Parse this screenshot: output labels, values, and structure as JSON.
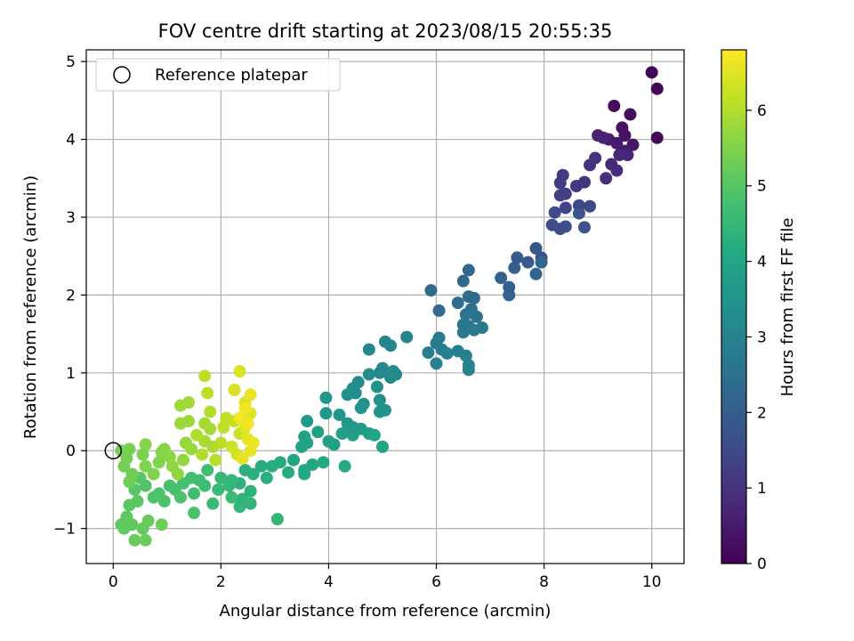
{
  "chart_data": {
    "type": "scatter",
    "title": "FOV centre drift starting at 2023/08/15 20:55:35",
    "xlabel": "Angular distance from reference (arcmin)",
    "ylabel": "Rotation from reference (arcmin)",
    "xlim": [
      -0.5,
      10.6
    ],
    "ylim": [
      -1.45,
      5.15
    ],
    "xticks": [
      0,
      2,
      4,
      6,
      8,
      10
    ],
    "xtick_labels": [
      "0",
      "2",
      "4",
      "6",
      "8",
      "10"
    ],
    "yticks": [
      -1,
      0,
      1,
      2,
      3,
      4,
      5
    ],
    "ytick_labels": [
      "−1",
      "0",
      "1",
      "2",
      "3",
      "4",
      "5"
    ],
    "grid": true,
    "legend": {
      "position": "upper-left",
      "entries": [
        {
          "label": "Reference platepar",
          "marker": "hollow-circle"
        }
      ]
    },
    "colorbar": {
      "label": "Hours from first FF file",
      "range": [
        0,
        6.8
      ],
      "ticks": [
        0,
        1,
        2,
        3,
        4,
        5,
        6
      ],
      "tick_labels": [
        "0",
        "1",
        "2",
        "3",
        "4",
        "5",
        "6"
      ],
      "colormap": "viridis"
    },
    "reference_point": {
      "x": 0,
      "y": 0
    },
    "series": [
      {
        "name": "Reference platepar",
        "points": [
          [
            10.0,
            4.86,
            0.05
          ],
          [
            10.1,
            4.65,
            0.1
          ],
          [
            10.1,
            4.02,
            0.15
          ],
          [
            9.3,
            4.43,
            0.2
          ],
          [
            9.6,
            4.32,
            0.25
          ],
          [
            9.45,
            4.15,
            0.3
          ],
          [
            9.5,
            4.05,
            0.35
          ],
          [
            9.65,
            3.93,
            0.4
          ],
          [
            9.5,
            3.85,
            0.45
          ],
          [
            9.35,
            3.95,
            0.5
          ],
          [
            9.2,
            4.0,
            0.55
          ],
          [
            9.0,
            4.05,
            0.6
          ],
          [
            9.1,
            4.02,
            0.65
          ],
          [
            9.55,
            3.8,
            0.7
          ],
          [
            9.4,
            3.8,
            0.75
          ],
          [
            9.25,
            3.68,
            0.8
          ],
          [
            9.35,
            3.6,
            0.85
          ],
          [
            9.15,
            3.5,
            0.9
          ],
          [
            8.95,
            3.76,
            0.95
          ],
          [
            8.85,
            3.67,
            1.0
          ],
          [
            8.75,
            3.45,
            1.05
          ],
          [
            8.6,
            3.4,
            1.1
          ],
          [
            8.35,
            3.54,
            1.15
          ],
          [
            8.3,
            3.44,
            1.2
          ],
          [
            8.3,
            3.28,
            1.25
          ],
          [
            8.4,
            3.3,
            1.3
          ],
          [
            8.4,
            3.12,
            1.35
          ],
          [
            8.65,
            3.15,
            1.4
          ],
          [
            8.85,
            3.14,
            1.45
          ],
          [
            8.2,
            3.06,
            1.5
          ],
          [
            8.15,
            2.9,
            1.55
          ],
          [
            8.3,
            2.85,
            1.6
          ],
          [
            8.4,
            2.88,
            1.65
          ],
          [
            8.75,
            2.87,
            1.7
          ],
          [
            8.65,
            3.05,
            1.75
          ],
          [
            7.95,
            2.48,
            1.8
          ],
          [
            7.85,
            2.6,
            1.85
          ],
          [
            7.7,
            2.42,
            1.9
          ],
          [
            7.5,
            2.48,
            1.95
          ],
          [
            7.45,
            2.35,
            2.0
          ],
          [
            7.35,
            2.1,
            2.05
          ],
          [
            7.35,
            2.0,
            2.1
          ],
          [
            7.2,
            2.22,
            2.15
          ],
          [
            7.85,
            2.27,
            2.2
          ],
          [
            7.95,
            2.42,
            2.25
          ],
          [
            6.6,
            2.32,
            2.25
          ],
          [
            6.5,
            2.18,
            2.3
          ],
          [
            5.9,
            2.06,
            2.35
          ],
          [
            6.05,
            1.8,
            2.35
          ],
          [
            6.6,
            1.98,
            2.4
          ],
          [
            6.7,
            1.96,
            2.42
          ],
          [
            6.4,
            1.9,
            2.45
          ],
          [
            6.65,
            1.82,
            2.5
          ],
          [
            6.55,
            1.75,
            2.55
          ],
          [
            6.75,
            1.72,
            2.6
          ],
          [
            6.5,
            1.62,
            2.65
          ],
          [
            6.6,
            1.6,
            2.7
          ],
          [
            6.85,
            1.58,
            2.72
          ],
          [
            6.7,
            1.55,
            2.75
          ],
          [
            6.5,
            1.52,
            2.78
          ],
          [
            6.05,
            1.45,
            2.8
          ],
          [
            6.0,
            1.38,
            2.82
          ],
          [
            6.1,
            1.3,
            2.85
          ],
          [
            5.85,
            1.26,
            2.88
          ],
          [
            6.2,
            1.25,
            2.9
          ],
          [
            6.4,
            1.28,
            2.92
          ],
          [
            6.55,
            1.22,
            2.95
          ],
          [
            6.6,
            1.1,
            2.98
          ],
          [
            6.6,
            1.04,
            3.0
          ],
          [
            6.0,
            1.12,
            3.02
          ],
          [
            5.45,
            1.46,
            3.05
          ],
          [
            5.05,
            1.4,
            3.08
          ],
          [
            5.15,
            1.35,
            3.1
          ],
          [
            4.75,
            1.3,
            3.12
          ],
          [
            5.0,
            1.06,
            3.15
          ],
          [
            4.95,
            1.0,
            3.18
          ],
          [
            5.2,
            1.02,
            3.2
          ],
          [
            5.25,
            0.98,
            3.22
          ],
          [
            5.15,
            0.94,
            3.25
          ],
          [
            4.75,
            0.98,
            3.28
          ],
          [
            4.55,
            0.88,
            3.3
          ],
          [
            4.45,
            0.8,
            3.32
          ],
          [
            4.5,
            0.74,
            3.35
          ],
          [
            4.35,
            0.72,
            3.38
          ],
          [
            4.9,
            0.82,
            3.4
          ],
          [
            4.95,
            0.65,
            3.42
          ],
          [
            4.65,
            0.6,
            3.45
          ],
          [
            4.6,
            0.55,
            3.48
          ],
          [
            5.05,
            0.52,
            3.5
          ],
          [
            4.95,
            0.5,
            3.52
          ],
          [
            3.95,
            0.68,
            3.55
          ],
          [
            4.2,
            0.46,
            3.58
          ],
          [
            3.95,
            0.48,
            3.6
          ],
          [
            3.6,
            0.38,
            3.62
          ],
          [
            4.35,
            0.35,
            3.65
          ],
          [
            4.45,
            0.3,
            3.68
          ],
          [
            4.6,
            0.28,
            3.7
          ],
          [
            4.75,
            0.22,
            3.72
          ],
          [
            4.45,
            0.2,
            3.75
          ],
          [
            4.25,
            0.22,
            3.78
          ],
          [
            3.8,
            0.24,
            3.8
          ],
          [
            4.0,
            0.12,
            3.82
          ],
          [
            4.1,
            0.08,
            3.85
          ],
          [
            3.55,
            0.18,
            3.88
          ],
          [
            3.6,
            0.1,
            3.9
          ],
          [
            3.5,
            0.05,
            3.92
          ],
          [
            4.85,
            0.2,
            3.95
          ],
          [
            5.0,
            0.05,
            3.98
          ],
          [
            3.35,
            -0.12,
            4.0
          ],
          [
            3.7,
            -0.18,
            4.02
          ],
          [
            3.55,
            -0.25,
            4.05
          ],
          [
            3.55,
            -0.3,
            4.08
          ],
          [
            3.9,
            -0.15,
            4.1
          ],
          [
            4.3,
            -0.2,
            4.12
          ],
          [
            3.1,
            -0.15,
            4.15
          ],
          [
            3.25,
            -0.28,
            4.18
          ],
          [
            2.95,
            -0.2,
            4.2
          ],
          [
            2.75,
            -0.2,
            4.22
          ],
          [
            2.85,
            -0.35,
            4.25
          ],
          [
            2.6,
            -0.3,
            4.28
          ],
          [
            2.45,
            -0.25,
            4.3
          ],
          [
            2.35,
            -0.42,
            4.32
          ],
          [
            2.55,
            -0.52,
            4.35
          ],
          [
            2.4,
            -0.62,
            4.38
          ],
          [
            2.55,
            -0.68,
            4.4
          ],
          [
            2.35,
            -0.72,
            4.42
          ],
          [
            3.05,
            -0.88,
            4.45
          ],
          [
            2.15,
            -0.45,
            4.48
          ],
          [
            2.2,
            -0.38,
            4.5
          ],
          [
            2.0,
            -0.35,
            4.52
          ],
          [
            1.95,
            -0.5,
            4.55
          ],
          [
            1.85,
            -0.68,
            4.58
          ],
          [
            2.2,
            -0.6,
            4.6
          ],
          [
            1.7,
            -0.45,
            4.62
          ],
          [
            1.6,
            -0.38,
            4.65
          ],
          [
            1.5,
            -0.55,
            4.68
          ],
          [
            1.75,
            -0.25,
            4.7
          ],
          [
            1.45,
            -0.35,
            4.72
          ],
          [
            1.3,
            -0.42,
            4.75
          ],
          [
            1.15,
            -0.5,
            4.78
          ],
          [
            1.05,
            -0.45,
            4.8
          ],
          [
            1.5,
            -0.8,
            4.82
          ],
          [
            1.25,
            -0.6,
            4.85
          ],
          [
            0.95,
            -0.65,
            4.88
          ],
          [
            0.85,
            -0.55,
            4.9
          ],
          [
            0.75,
            -0.6,
            4.92
          ],
          [
            0.6,
            -0.45,
            4.95
          ],
          [
            0.5,
            -0.35,
            4.98
          ],
          [
            0.4,
            -0.5,
            5.0
          ],
          [
            0.45,
            -0.65,
            5.02
          ],
          [
            0.3,
            -0.7,
            5.05
          ],
          [
            0.25,
            -0.85,
            5.08
          ],
          [
            0.15,
            -0.95,
            5.1
          ],
          [
            0.2,
            -1.0,
            5.12
          ],
          [
            0.35,
            -0.95,
            5.15
          ],
          [
            0.55,
            -1.0,
            5.18
          ],
          [
            0.65,
            -0.9,
            5.2
          ],
          [
            0.4,
            -1.15,
            5.22
          ],
          [
            0.6,
            -1.15,
            5.25
          ],
          [
            0.9,
            -0.95,
            5.28
          ],
          [
            0.3,
            -0.4,
            5.3
          ],
          [
            0.35,
            -0.3,
            5.32
          ],
          [
            0.2,
            -0.2,
            5.35
          ],
          [
            0.25,
            -0.1,
            5.38
          ],
          [
            0.15,
            0.0,
            5.4
          ],
          [
            0.3,
            0.02,
            5.42
          ],
          [
            0.55,
            -0.05,
            5.45
          ],
          [
            0.6,
            -0.2,
            5.48
          ],
          [
            0.75,
            -0.3,
            5.5
          ],
          [
            0.85,
            -0.15,
            5.52
          ],
          [
            0.9,
            -0.02,
            5.55
          ],
          [
            0.6,
            0.08,
            5.58
          ],
          [
            0.95,
            0.02,
            5.6
          ],
          [
            1.05,
            -0.08,
            5.62
          ],
          [
            1.1,
            -0.2,
            5.65
          ],
          [
            1.2,
            -0.3,
            5.68
          ],
          [
            1.3,
            -0.12,
            5.7
          ],
          [
            1.35,
            0.1,
            5.72
          ],
          [
            1.45,
            0.02,
            5.75
          ],
          [
            1.25,
            0.35,
            5.78
          ],
          [
            1.4,
            0.38,
            5.8
          ],
          [
            1.25,
            0.58,
            5.82
          ],
          [
            1.4,
            0.62,
            5.85
          ],
          [
            1.7,
            0.35,
            5.88
          ],
          [
            1.8,
            0.28,
            5.9
          ],
          [
            1.7,
            0.12,
            5.92
          ],
          [
            1.85,
            0.05,
            5.95
          ],
          [
            1.65,
            -0.05,
            5.98
          ],
          [
            1.55,
            0.2,
            6.0
          ],
          [
            1.8,
            0.5,
            6.02
          ],
          [
            1.9,
            -0.12,
            6.05
          ],
          [
            2.0,
            0.1,
            6.08
          ],
          [
            1.75,
            0.74,
            6.1
          ],
          [
            1.7,
            0.96,
            6.12
          ],
          [
            2.05,
            0.3,
            6.15
          ],
          [
            2.1,
            0.42,
            6.18
          ],
          [
            2.25,
            0.38,
            6.2
          ],
          [
            2.35,
            0.22,
            6.25
          ],
          [
            2.2,
            0.05,
            6.3
          ],
          [
            2.3,
            -0.05,
            6.35
          ],
          [
            2.25,
            0.78,
            6.4
          ],
          [
            2.35,
            1.02,
            6.42
          ],
          [
            2.45,
            0.62,
            6.45
          ],
          [
            2.55,
            0.48,
            6.48
          ],
          [
            2.45,
            0.3,
            6.5
          ],
          [
            2.5,
            0.15,
            6.52
          ],
          [
            2.55,
            0.0,
            6.55
          ],
          [
            2.4,
            -0.1,
            6.58
          ],
          [
            2.6,
            0.1,
            6.6
          ],
          [
            2.55,
            0.72,
            6.62
          ],
          [
            2.45,
            0.55,
            6.65
          ],
          [
            2.35,
            0.42,
            6.68
          ],
          [
            2.5,
            0.35,
            6.7
          ]
        ]
      }
    ]
  }
}
